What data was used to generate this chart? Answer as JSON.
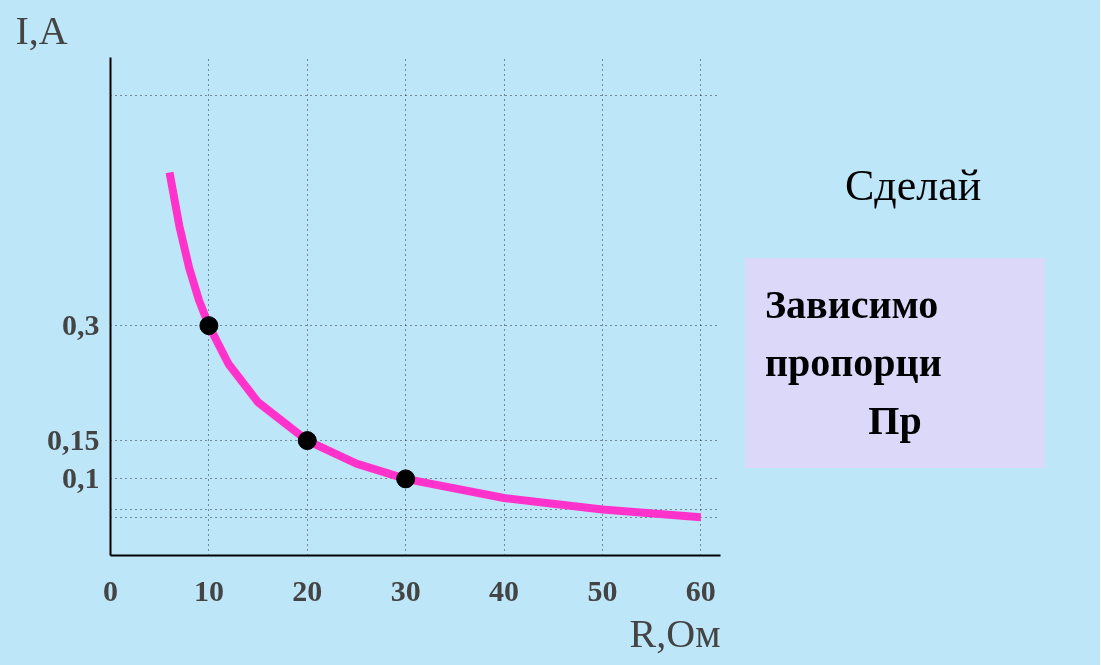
{
  "chart_data": {
    "type": "line",
    "xlabel": "R,Ом",
    "ylabel": "I,A",
    "xlim": [
      0,
      62
    ],
    "ylim": [
      0,
      0.65
    ],
    "xticks": [
      0,
      10,
      20,
      30,
      40,
      50,
      60
    ],
    "yticks": [
      {
        "value": 0.05,
        "label": null
      },
      {
        "value": 0.06,
        "label": null
      },
      {
        "value": 0.1,
        "label": "0,1"
      },
      {
        "value": 0.15,
        "label": "0,15"
      },
      {
        "value": 0.3,
        "label": "0,3"
      },
      {
        "value": 0.6,
        "label": null
      }
    ],
    "grid": true,
    "series": [
      {
        "color": "#ff33cc",
        "x": [
          6,
          7,
          8,
          9,
          10,
          12,
          15,
          20,
          25,
          30,
          40,
          50,
          60
        ],
        "values": [
          0.5,
          0.43,
          0.375,
          0.333,
          0.3,
          0.25,
          0.2,
          0.15,
          0.12,
          0.1,
          0.075,
          0.06,
          0.05
        ]
      },
      {
        "type": "scatter",
        "marker": "circle",
        "color": "#000000",
        "x": [
          10,
          20,
          30
        ],
        "values": [
          0.3,
          0.15,
          0.1
        ]
      }
    ],
    "annotations": [
      "Сделай",
      "Зависимо",
      "пропорци",
      "Пр"
    ]
  }
}
